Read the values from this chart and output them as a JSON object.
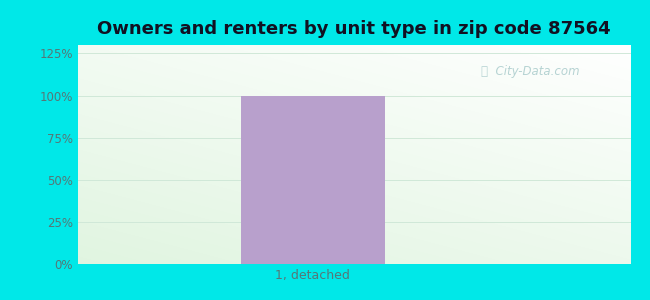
{
  "title": "Owners and renters by unit type in zip code 87564",
  "categories": [
    "1, detached"
  ],
  "values": [
    100
  ],
  "bar_color": "#b8a0cc",
  "ylim": [
    0,
    130
  ],
  "yticks": [
    0,
    25,
    50,
    75,
    100,
    125
  ],
  "ytick_labels": [
    "0%",
    "25%",
    "50%",
    "75%",
    "100%",
    "125%"
  ],
  "outer_bg_color": "#00e8e8",
  "title_fontsize": 13,
  "tick_color": "#557777",
  "grid_color": "#d0e8d8",
  "watermark_text": "City-Data.com",
  "watermark_color": "#aacccc",
  "title_color": "#111122"
}
